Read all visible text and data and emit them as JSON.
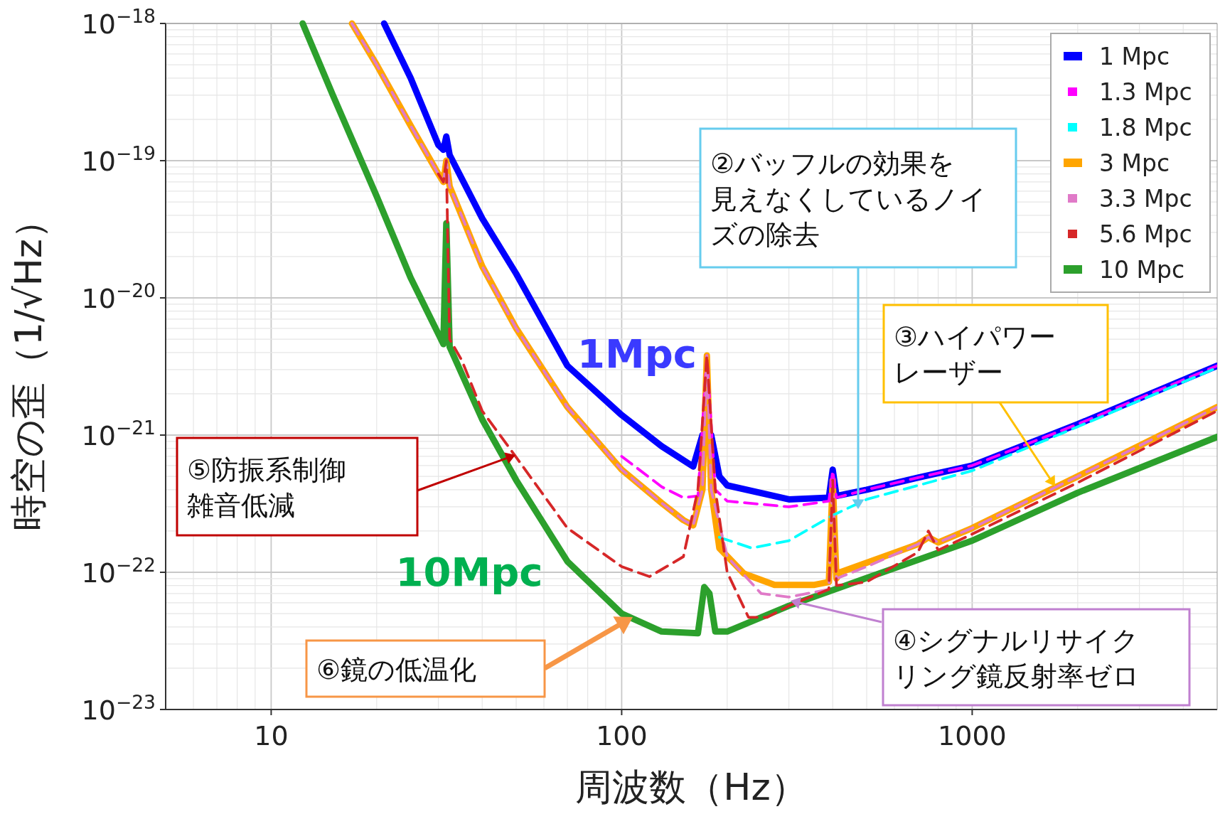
{
  "chart_data": {
    "type": "line",
    "log": "xy",
    "grid": true,
    "legend": "top right",
    "xlabel": "周波数（Hz）",
    "ylabel": "時空の歪（1/√Hz）",
    "xlim": [
      5,
      5000
    ],
    "ylim": [
      1e-23,
      1e-18
    ],
    "xticks": [
      10,
      100,
      1000
    ],
    "yticks": [
      {
        "value": 1e-23,
        "label": "10$^{−23}$"
      },
      {
        "value": 1e-22,
        "label": "10$^{−22}$"
      },
      {
        "value": 1e-21,
        "label": "10$^{−21}$"
      },
      {
        "value": 1e-20,
        "label": "10$^{−20}$"
      },
      {
        "value": 1e-19,
        "label": "10$^{−19}$"
      },
      {
        "value": 1e-18,
        "label": "10$^{−18}$"
      }
    ],
    "series": [
      {
        "name": "1 Mpc",
        "color": "#0000ff",
        "line_style": "solid",
        "x": [
          21,
          25,
          30,
          31,
          31.6,
          32.3,
          40,
          50,
          70,
          100,
          130,
          160,
          170,
          180,
          190,
          200,
          300,
          390,
          400,
          410,
          500,
          700,
          1000,
          2000,
          5000
        ],
        "values": [
          1e-18,
          4e-19,
          1.3e-19,
          1.2e-19,
          1.5e-19,
          1.1e-19,
          3.8e-20,
          1.5e-20,
          3.2e-21,
          1.4e-21,
          8.3e-22,
          5.9e-22,
          1e-21,
          1e-21,
          5e-22,
          4.3e-22,
          3.4e-22,
          3.5e-22,
          5.6e-22,
          3.6e-22,
          4e-22,
          4.9e-22,
          6e-22,
          1.2e-21,
          3.2e-21
        ]
      },
      {
        "name": "1.3 Mpc",
        "color": "#ff00ff",
        "line_style": "dashed",
        "x": [
          100,
          130,
          150,
          165,
          175,
          185,
          200,
          300,
          390,
          400,
          410,
          500,
          700,
          1000,
          2000,
          5000
        ],
        "values": [
          7e-22,
          4.2e-22,
          3.5e-22,
          3.6e-22,
          3.8e-21,
          4e-22,
          3.3e-22,
          3e-22,
          3.3e-22,
          5.5e-22,
          3.5e-22,
          4e-22,
          4.9e-22,
          6e-22,
          1.2e-21,
          3.2e-21
        ]
      },
      {
        "name": "1.8 Mpc",
        "color": "#00ffff",
        "line_style": "dashed",
        "x": [
          190,
          235,
          300,
          400,
          500,
          1000,
          2000,
          5000
        ],
        "values": [
          1.8e-22,
          1.5e-22,
          1.7e-22,
          2.6e-22,
          3.4e-22,
          5.5e-22,
          1.15e-21,
          3.1e-21
        ]
      },
      {
        "name": "3 Mpc",
        "color": "#ffa500",
        "line_style": "solid",
        "x": [
          17,
          20,
          25,
          30,
          31,
          31.6,
          32.3,
          40,
          50,
          70,
          100,
          130,
          150,
          160,
          170,
          175,
          180,
          190,
          223,
          273,
          355,
          390,
          400,
          410,
          420,
          700,
          750,
          800,
          1000,
          2000,
          5000
        ],
        "values": [
          1e-18,
          5e-19,
          1.8e-19,
          8e-20,
          7e-20,
          1e-19,
          6.5e-20,
          1.7e-20,
          6e-21,
          1.6e-21,
          5.6e-22,
          3.2e-22,
          2.4e-22,
          2.2e-22,
          4e-22,
          3.8e-21,
          4e-22,
          1.5e-22,
          9.8e-23,
          8.1e-23,
          8.1e-23,
          8.5e-23,
          4.7e-22,
          9e-23,
          1e-22,
          1.6e-22,
          1.8e-22,
          1.65e-22,
          2.1e-22,
          5e-22,
          1.6e-21
        ]
      },
      {
        "name": "3.3 Mpc",
        "color": "#e07ac8",
        "line_style": "dashed",
        "x": [
          17,
          20,
          25,
          30,
          31,
          31.6,
          32.3,
          40,
          50,
          70,
          100,
          130,
          150,
          160,
          170,
          175,
          180,
          200,
          250,
          300,
          390,
          400,
          410,
          500,
          700,
          750,
          800,
          1000,
          2000,
          5000
        ],
        "values": [
          1e-18,
          5e-19,
          1.8e-19,
          8e-20,
          7e-20,
          1e-19,
          6.5e-20,
          1.7e-20,
          6e-21,
          1.6e-21,
          5.6e-22,
          3.2e-22,
          2.4e-22,
          2.2e-22,
          4e-22,
          3.8e-21,
          4e-22,
          1.3e-22,
          7e-23,
          6.6e-23,
          7.5e-23,
          4.7e-22,
          9e-23,
          1.1e-22,
          1.6e-22,
          1.8e-22,
          1.65e-22,
          2.1e-22,
          5e-22,
          1.6e-21
        ]
      },
      {
        "name": "5.6 Mpc",
        "color": "#d62728",
        "line_style": "dashed",
        "x": [
          30,
          31,
          31.6,
          32.3,
          35,
          40,
          50,
          70,
          100,
          120,
          150,
          165,
          175,
          185,
          200,
          230,
          260,
          300,
          390,
          400,
          410,
          500,
          700,
          750,
          800,
          1000,
          2000,
          5000
        ],
        "values": [
          8e-20,
          7e-20,
          1e-19,
          5e-21,
          3.5e-21,
          1.5e-21,
          6.9e-22,
          2.1e-22,
          1.1e-22,
          9.3e-23,
          1.3e-22,
          4e-22,
          3.8e-21,
          4e-22,
          1e-22,
          4.7e-23,
          4.7e-23,
          5.7e-23,
          7.5e-23,
          4.7e-22,
          8e-23,
          8.5e-23,
          1.4e-22,
          2e-22,
          1.45e-22,
          1.9e-22,
          4.5e-22,
          1.5e-21
        ]
      },
      {
        "name": "10 Mpc",
        "color": "#2ca02c",
        "line_style": "solid",
        "x": [
          12.3,
          15,
          20,
          25,
          31,
          31.6,
          32.3,
          40,
          50,
          70,
          100,
          130,
          165,
          172,
          178,
          185,
          200,
          300,
          500,
          1000,
          2000,
          5000
        ],
        "values": [
          1e-18,
          3e-19,
          5.5e-20,
          1.4e-20,
          4.6e-21,
          3.5e-20,
          4.4e-21,
          1.3e-21,
          4.7e-22,
          1.2e-22,
          5e-23,
          3.7e-23,
          3.6e-23,
          7.8e-23,
          7e-23,
          3.7e-23,
          3.7e-23,
          5.7e-23,
          9.1e-23,
          1.7e-22,
          3.8e-22,
          9.7e-22
        ]
      }
    ],
    "annotations": [
      "1Mpc",
      "10Mpc",
      "②バッフルの効果を見えなくしているノイズの除去",
      "③ハイパワーレーザー",
      "④シグナルリサイクリング鏡反射率ゼロ",
      "⑤防振系制御雑音低減",
      "⑥鏡の低温化"
    ]
  }
}
